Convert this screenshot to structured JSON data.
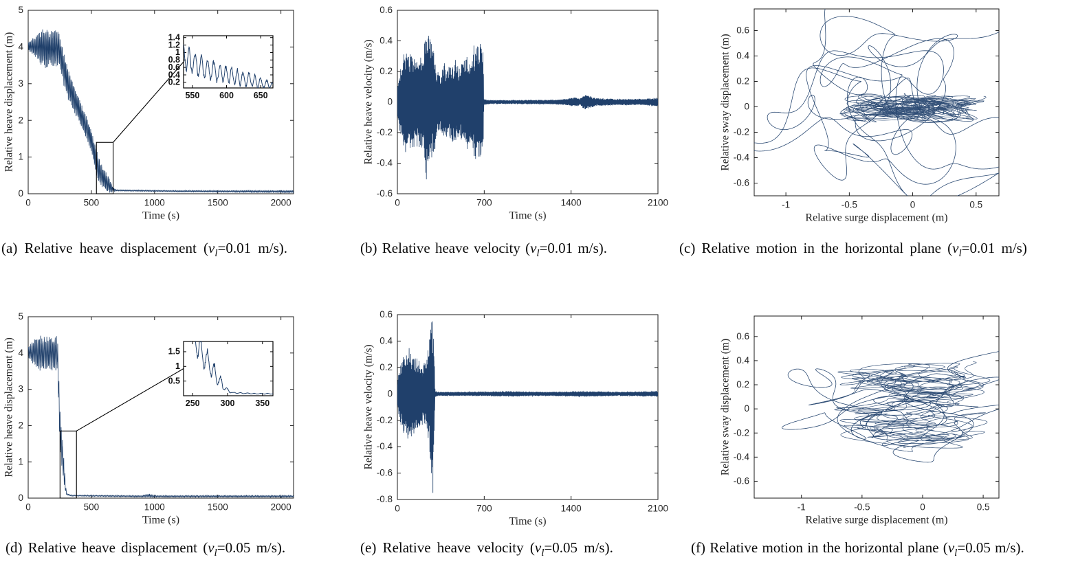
{
  "figure": {
    "line_color": "#20406b",
    "axis_color": "#1a1a1a",
    "text_color": "#262626",
    "background": "#ffffff"
  },
  "captions": [
    {
      "pre": "(a) Relative heave displacement (",
      "var": "v",
      "sub": "l",
      "post": "=0.01 m/s)."
    },
    {
      "pre": "(b) Relative heave velocity (",
      "var": "v",
      "sub": "l",
      "post": "=0.01 m/s)."
    },
    {
      "pre": "(c) Relative motion in the horizontal plane (",
      "var": "v",
      "sub": "l",
      "post": "=0.01 m/s)"
    },
    {
      "pre": "(d) Relative heave displacement (",
      "var": "v",
      "sub": "l",
      "post": "=0.05 m/s)."
    },
    {
      "pre": "(e) Relative heave velocity (",
      "var": "v",
      "sub": "l",
      "post": "=0.05 m/s)."
    },
    {
      "pre": "(f) Relative motion in the horizontal plane (",
      "var": "v",
      "sub": "l",
      "post": "=0.05 m/s)."
    }
  ],
  "chart_data": [
    {
      "id": "a",
      "type": "line",
      "xlabel": "Time (s)",
      "ylabel": "Relative heave displacement (m)",
      "xlim": [
        0,
        2100
      ],
      "ylim": [
        0,
        5
      ],
      "xticks": [
        0,
        500,
        1000,
        1500,
        2000
      ],
      "yticks": [
        0,
        1,
        2,
        3,
        4,
        5
      ],
      "signal": {
        "t0": 0,
        "t1": 2100,
        "dt": 0.55,
        "period": 9,
        "seed": 3,
        "min": 0.03,
        "mean": [
          [
            0,
            4.02
          ],
          [
            245,
            3.95
          ],
          [
            262,
            3.7
          ],
          [
            285,
            3.35
          ],
          [
            310,
            3.05
          ],
          [
            340,
            2.8
          ],
          [
            380,
            2.45
          ],
          [
            420,
            2.15
          ],
          [
            460,
            1.8
          ],
          [
            500,
            1.45
          ],
          [
            530,
            1.0
          ],
          [
            560,
            0.62
          ],
          [
            590,
            0.45
          ],
          [
            620,
            0.32
          ],
          [
            650,
            0.18
          ],
          [
            672,
            0.11
          ],
          [
            700,
            0.09
          ],
          [
            1200,
            0.07
          ],
          [
            2100,
            0.06
          ]
        ],
        "amp": [
          [
            0,
            0.12
          ],
          [
            50,
            0.25
          ],
          [
            100,
            0.45
          ],
          [
            140,
            0.55
          ],
          [
            180,
            0.45
          ],
          [
            220,
            0.5
          ],
          [
            262,
            0.42
          ],
          [
            300,
            0.45
          ],
          [
            340,
            0.38
          ],
          [
            400,
            0.33
          ],
          [
            460,
            0.3
          ],
          [
            510,
            0.3
          ],
          [
            545,
            0.38
          ],
          [
            580,
            0.3
          ],
          [
            610,
            0.25
          ],
          [
            640,
            0.2
          ],
          [
            660,
            0.12
          ],
          [
            675,
            0.05
          ],
          [
            700,
            0.015
          ],
          [
            1500,
            0.02
          ],
          [
            2100,
            0.03
          ]
        ]
      },
      "inset": {
        "xlim": [
          537,
          668
        ],
        "ylim": [
          0.05,
          1.45
        ],
        "xticks": [
          550,
          600,
          650
        ],
        "yticks": [
          0.2,
          0.4,
          0.6,
          0.8,
          1,
          1.2,
          1.4
        ],
        "rect_x": [
          540,
          672
        ],
        "rect_y": [
          0,
          1.4
        ]
      }
    },
    {
      "id": "b",
      "type": "line",
      "xlabel": "Time (s)",
      "ylabel": "Relative heave velocity (m/s)",
      "xlim": [
        0,
        2100
      ],
      "ylim": [
        -0.6,
        0.6
      ],
      "xticks": [
        0,
        700,
        1400,
        2100
      ],
      "yticks": [
        -0.6,
        -0.4,
        -0.2,
        0,
        0.2,
        0.4,
        0.6
      ],
      "signal": {
        "t0": 0,
        "t1": 2100,
        "dt": 0.45,
        "period": 4.5,
        "seed": 5,
        "amp": [
          [
            0,
            0.1
          ],
          [
            30,
            0.25
          ],
          [
            60,
            0.35
          ],
          [
            90,
            0.3
          ],
          [
            120,
            0.33
          ],
          [
            150,
            0.28
          ],
          [
            180,
            0.3
          ],
          [
            210,
            0.28
          ],
          [
            230,
            0.5
          ],
          [
            250,
            0.45
          ],
          [
            270,
            0.38
          ],
          [
            300,
            0.33
          ],
          [
            320,
            0.2
          ],
          [
            350,
            0.18
          ],
          [
            380,
            0.25
          ],
          [
            410,
            0.22
          ],
          [
            440,
            0.25
          ],
          [
            470,
            0.28
          ],
          [
            500,
            0.22
          ],
          [
            530,
            0.25
          ],
          [
            560,
            0.3
          ],
          [
            590,
            0.28
          ],
          [
            620,
            0.38
          ],
          [
            650,
            0.35
          ],
          [
            680,
            0.4
          ],
          [
            692,
            0.3
          ],
          [
            697,
            0.02
          ],
          [
            750,
            0.012
          ],
          [
            1000,
            0.013
          ],
          [
            1300,
            0.015
          ],
          [
            1430,
            0.03
          ],
          [
            1470,
            0.02
          ],
          [
            1510,
            0.05
          ],
          [
            1550,
            0.04
          ],
          [
            1600,
            0.025
          ],
          [
            1800,
            0.02
          ],
          [
            2000,
            0.02
          ],
          [
            2100,
            0.03
          ]
        ]
      }
    },
    {
      "id": "c",
      "type": "trajectory",
      "xlabel": "Relative surge displacement (m)",
      "ylabel": "Relative sway displacement (m)",
      "xlim": [
        -1.25,
        0.68
      ],
      "ylim": [
        -0.7,
        0.77
      ],
      "xticks": [
        -1,
        -0.5,
        0,
        0.5
      ],
      "yticks": [
        -0.6,
        -0.4,
        -0.2,
        0,
        0.2,
        0.4,
        0.6
      ],
      "outer": {
        "t1": 2100,
        "dt": 0.8,
        "center": [
          -0.27,
          0.02
        ],
        "x": [
          [
            0.52,
            0.02,
            1.0
          ],
          [
            0.34,
            0.0063,
            2.2
          ],
          [
            0.21,
            0.044,
            0.4
          ],
          [
            0.09,
            0.1,
            1.4
          ]
        ],
        "y": [
          [
            0.4,
            0.016,
            0.3
          ],
          [
            0.24,
            0.0088,
            1.7
          ],
          [
            0.17,
            0.05,
            2.5
          ],
          [
            0.07,
            0.12,
            0.8
          ]
        ]
      },
      "core": {
        "t1": 2100,
        "dt": 0.33,
        "center": [
          0.0,
          -0.01
        ],
        "x": [
          [
            0.3,
            0.09,
            0.5
          ],
          [
            0.18,
            0.023,
            1.1
          ],
          [
            0.1,
            0.31,
            2.0
          ]
        ],
        "y": [
          [
            0.055,
            0.12,
            0.9
          ],
          [
            0.035,
            0.041,
            0.2
          ],
          [
            0.025,
            0.27,
            1.5
          ]
        ]
      }
    },
    {
      "id": "d",
      "type": "line",
      "xlabel": "Time (s)",
      "ylabel": "Relative heave displacement (m)",
      "xlim": [
        0,
        2100
      ],
      "ylim": [
        0,
        5
      ],
      "xticks": [
        0,
        500,
        1000,
        1500,
        2000
      ],
      "yticks": [
        0,
        1,
        2,
        3,
        4,
        5
      ],
      "signal": {
        "t0": 0,
        "t1": 2100,
        "dt": 0.55,
        "period": 10,
        "seed": 7,
        "min": 0.03,
        "mean": [
          [
            0,
            4.02
          ],
          [
            230,
            3.98
          ],
          [
            236,
            3.6
          ],
          [
            242,
            2.9
          ],
          [
            248,
            2.25
          ],
          [
            254,
            1.85
          ],
          [
            262,
            1.5
          ],
          [
            272,
            1.15
          ],
          [
            282,
            0.75
          ],
          [
            292,
            0.4
          ],
          [
            300,
            0.18
          ],
          [
            308,
            0.1
          ],
          [
            340,
            0.07
          ],
          [
            900,
            0.05
          ],
          [
            950,
            0.07
          ],
          [
            1000,
            0.05
          ],
          [
            2100,
            0.05
          ]
        ],
        "amp": [
          [
            0,
            0.15
          ],
          [
            80,
            0.5
          ],
          [
            150,
            0.45
          ],
          [
            215,
            0.45
          ],
          [
            240,
            0.5
          ],
          [
            255,
            0.5
          ],
          [
            270,
            0.45
          ],
          [
            282,
            0.35
          ],
          [
            292,
            0.2
          ],
          [
            300,
            0.08
          ],
          [
            308,
            0.02
          ],
          [
            340,
            0.015
          ],
          [
            900,
            0.02
          ],
          [
            960,
            0.045
          ],
          [
            1020,
            0.02
          ],
          [
            2100,
            0.025
          ]
        ]
      },
      "inset": {
        "xlim": [
          237,
          365
        ],
        "ylim": [
          0,
          1.85
        ],
        "xticks": [
          250,
          300,
          350
        ],
        "yticks": [
          0.5,
          1,
          1.5
        ],
        "rect_x": [
          252,
          382
        ],
        "rect_y": [
          0,
          1.85
        ]
      }
    },
    {
      "id": "e",
      "type": "line",
      "xlabel": "Time (s)",
      "ylabel": "Relative heave velocity (m/s)",
      "xlim": [
        0,
        2100
      ],
      "ylim": [
        -0.8,
        0.6
      ],
      "xticks": [
        0,
        700,
        1400,
        2100
      ],
      "yticks": [
        -0.8,
        -0.6,
        -0.4,
        -0.2,
        0,
        0.2,
        0.4,
        0.6
      ],
      "signal": {
        "t0": 0,
        "t1": 2100,
        "dt": 0.45,
        "period": 4.5,
        "seed": 9,
        "amp": [
          [
            0,
            0.1
          ],
          [
            30,
            0.25
          ],
          [
            60,
            0.3
          ],
          [
            90,
            0.35
          ],
          [
            120,
            0.3
          ],
          [
            150,
            0.28
          ],
          [
            180,
            0.25
          ],
          [
            210,
            0.22
          ],
          [
            240,
            0.3
          ],
          [
            255,
            0.35
          ],
          [
            268,
            0.5
          ],
          [
            280,
            0.58
          ],
          [
            290,
            0.5
          ],
          [
            298,
            0.25
          ],
          [
            304,
            0.03
          ],
          [
            320,
            0.015
          ],
          [
            600,
            0.015
          ],
          [
            900,
            0.02
          ],
          [
            1200,
            0.015
          ],
          [
            1500,
            0.02
          ],
          [
            1800,
            0.015
          ],
          [
            2100,
            0.02
          ]
        ],
        "spikes": [
          [
            275,
            -0.6
          ],
          [
            281,
            0.55
          ],
          [
            286,
            -0.75
          ]
        ]
      }
    },
    {
      "id": "f",
      "type": "trajectory",
      "xlabel": "Relative surge displacement (m)",
      "ylabel": "Relative sway displacement (m)",
      "xlim": [
        -1.39,
        0.63
      ],
      "ylim": [
        -0.74,
        0.77
      ],
      "xticks": [
        -1,
        -0.5,
        0,
        0.5
      ],
      "yticks": [
        -0.6,
        -0.4,
        -0.2,
        0,
        0.2,
        0.4,
        0.6
      ],
      "outer": {
        "t1": 2100,
        "dt": 0.8,
        "center": [
          -0.22,
          0.0
        ],
        "x": [
          [
            0.5,
            0.019,
            0.7
          ],
          [
            0.33,
            0.0071,
            1.9
          ],
          [
            0.2,
            0.047,
            2.8
          ],
          [
            0.08,
            0.11,
            0.3
          ]
        ],
        "y": [
          [
            0.28,
            0.013,
            0.5
          ],
          [
            0.13,
            0.0095,
            2.3
          ],
          [
            0.1,
            0.055,
            1.0
          ]
        ]
      },
      "core": {
        "t1": 2100,
        "dt": 0.33,
        "center": [
          -0.08,
          0.02
        ],
        "x": [
          [
            0.34,
            0.085,
            0.2
          ],
          [
            0.2,
            0.021,
            1.4
          ],
          [
            0.11,
            0.3,
            0.8
          ]
        ],
        "y": [
          [
            0.26,
            0.0035,
            0.6
          ],
          [
            0.07,
            0.11,
            1.8
          ],
          [
            0.05,
            0.035,
            2.6
          ]
        ]
      }
    }
  ]
}
